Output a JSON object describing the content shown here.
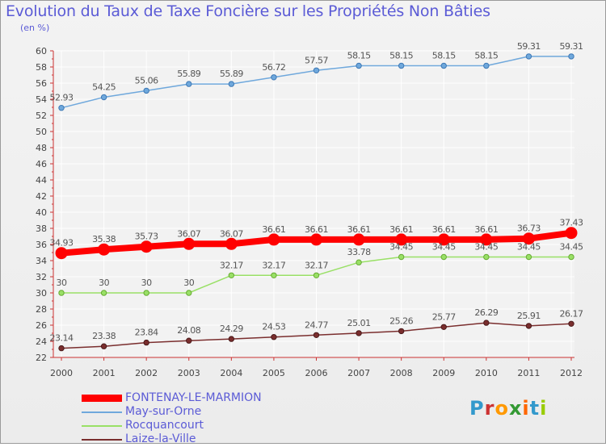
{
  "chart_data": {
    "type": "line",
    "title": "Evolution du Taux de Taxe Foncière sur les Propriétés Non Bâties",
    "ylabel": "(en %)",
    "xlabel": "",
    "ylim": [
      22,
      60
    ],
    "grid": true,
    "x": [
      "2000",
      "2001",
      "2002",
      "2003",
      "2004",
      "2005",
      "2006",
      "2007",
      "2008",
      "2009",
      "2010",
      "2011",
      "2012"
    ],
    "y_ticks": [
      "22",
      "24",
      "26",
      "28",
      "30",
      "32",
      "34",
      "36",
      "38",
      "40",
      "42",
      "44",
      "46",
      "48",
      "50",
      "52",
      "54",
      "56",
      "58",
      "60"
    ],
    "series": [
      {
        "name": "FONTENAY-LE-MARMION",
        "color": "#ff0000",
        "values": [
          34.93,
          35.38,
          35.73,
          36.07,
          36.07,
          36.61,
          36.61,
          36.61,
          36.61,
          36.61,
          36.61,
          36.73,
          37.43
        ],
        "labels": [
          "34.93",
          "35.38",
          "35.73",
          "36.07",
          "36.07",
          "36.61",
          "36.61",
          "36.61",
          "36.61",
          "36.61",
          "36.61",
          "36.73",
          "37.43"
        ]
      },
      {
        "name": "May-sur-Orne",
        "color": "#6fa8dc",
        "values": [
          52.93,
          54.25,
          55.06,
          55.89,
          55.89,
          56.72,
          57.57,
          58.15,
          58.15,
          58.15,
          58.15,
          59.31,
          59.31
        ],
        "labels": [
          "52.93",
          "54.25",
          "55.06",
          "55.89",
          "55.89",
          "56.72",
          "57.57",
          "58.15",
          "58.15",
          "58.15",
          "58.15",
          "59.31",
          "59.31"
        ]
      },
      {
        "name": "Rocquancourt",
        "color": "#99e066",
        "values": [
          30,
          30,
          30,
          30,
          32.17,
          32.17,
          32.17,
          33.78,
          34.45,
          34.45,
          34.45,
          34.45,
          34.45
        ],
        "labels": [
          "30",
          "30",
          "30",
          "30",
          "32.17",
          "32.17",
          "32.17",
          "33.78",
          "34.45",
          "34.45",
          "34.45",
          "34.45",
          "34.45"
        ]
      },
      {
        "name": "Laize-la-Ville",
        "color": "#7a2e2e",
        "values": [
          23.14,
          23.38,
          23.84,
          24.08,
          24.29,
          24.53,
          24.77,
          25.01,
          25.26,
          25.77,
          26.29,
          25.91,
          26.17
        ],
        "labels": [
          "23.14",
          "23.38",
          "23.84",
          "24.08",
          "24.29",
          "24.53",
          "24.77",
          "25.01",
          "25.26",
          "25.77",
          "26.29",
          "25.91",
          "26.17"
        ]
      }
    ]
  },
  "logo": {
    "text": "Proxiti",
    "letters": [
      "P",
      "r",
      "o",
      "x",
      "i",
      "t",
      "i"
    ],
    "colors": [
      "#3399cc",
      "#cc3333",
      "#ff9900",
      "#339933",
      "#ff6600",
      "#3399cc",
      "#99cc00"
    ]
  }
}
